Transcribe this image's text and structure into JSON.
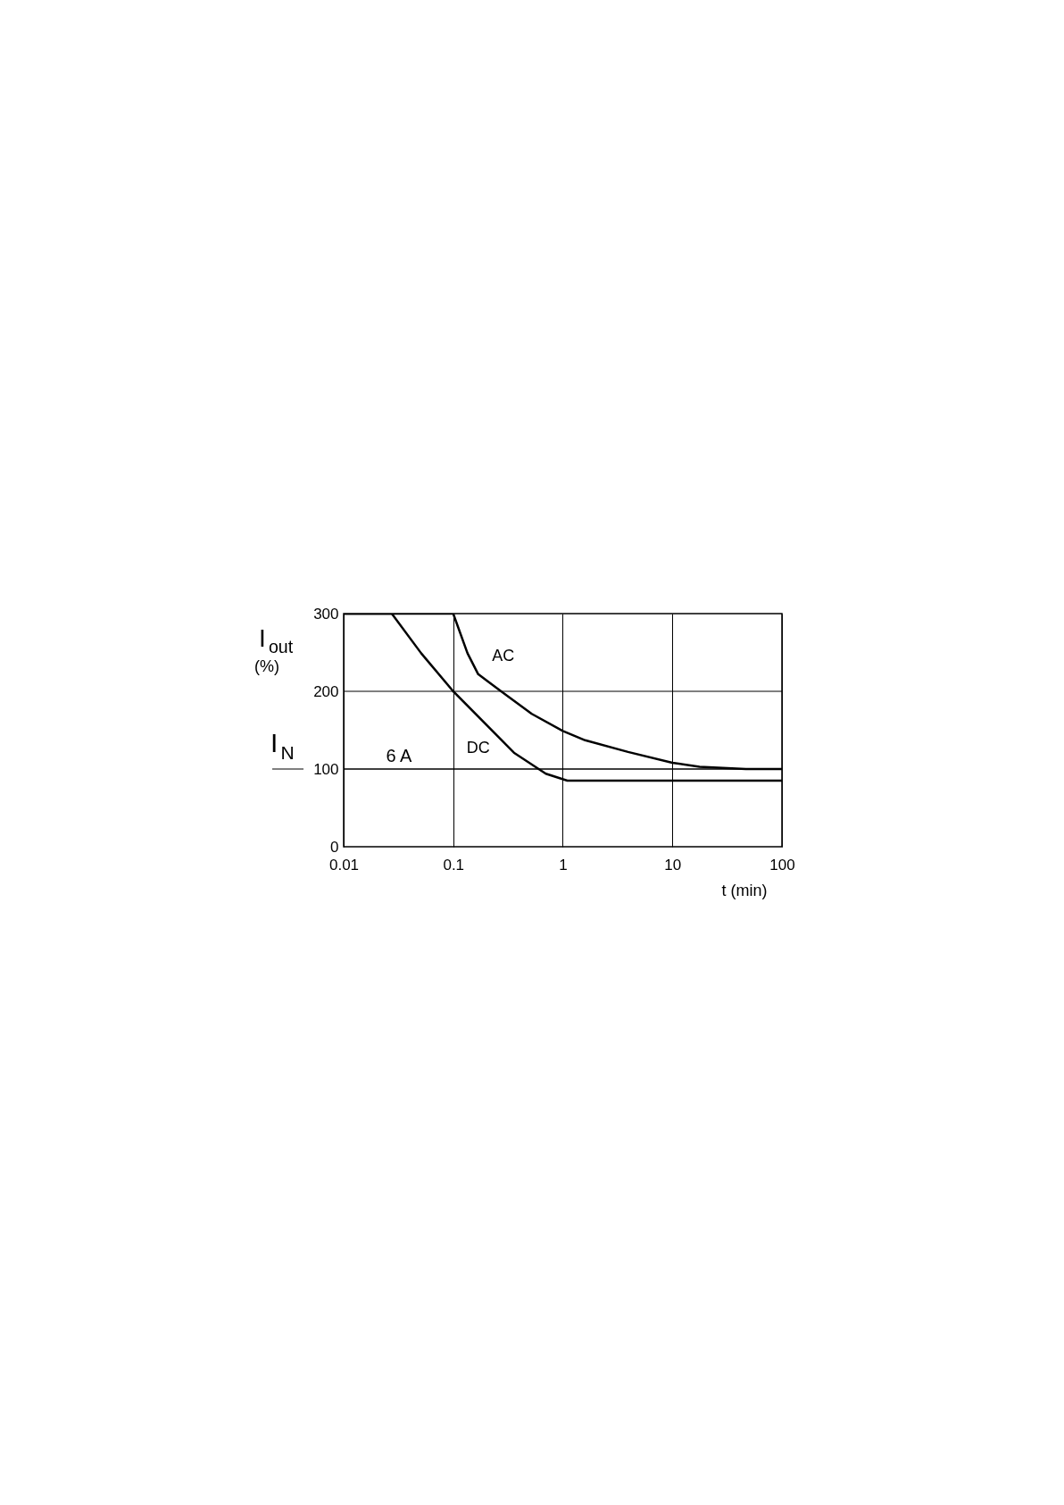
{
  "chart_data": {
    "type": "line",
    "ylabel": "I$_{out}$ (%)",
    "xlabel": "t (min)",
    "log": "x",
    "xlim": [
      0.01,
      100
    ],
    "xticks": [
      0.01,
      0.1,
      1,
      10,
      100
    ],
    "ylim": [
      0,
      300
    ],
    "yticks": [
      0,
      100,
      200,
      300
    ],
    "grid": true,
    "legend": false,
    "marker": "none",
    "line_style": "solid",
    "series": [
      {
        "name": "AC",
        "color": "#000000",
        "x": [
          0.01,
          0.1,
          0.135,
          0.169,
          0.286,
          0.521,
          1,
          1.6,
          3.94,
          10,
          17.7,
          46.9,
          100
        ],
        "values": [
          300,
          300,
          249,
          222,
          198,
          171,
          149,
          137,
          122,
          108,
          103,
          100,
          100
        ]
      },
      {
        "name": "DC",
        "color": "#000000",
        "x": [
          0.01,
          0.0275,
          0.051,
          0.1,
          0.358,
          0.7,
          1.1,
          100
        ],
        "values": [
          300,
          300,
          249,
          200,
          121,
          94,
          85,
          85
        ]
      }
    ],
    "ref_lines": [
      {
        "axis": "y",
        "value": 100,
        "label": "6 A",
        "color": "#000000"
      }
    ],
    "annotations": [
      "I$_{N}$"
    ]
  }
}
